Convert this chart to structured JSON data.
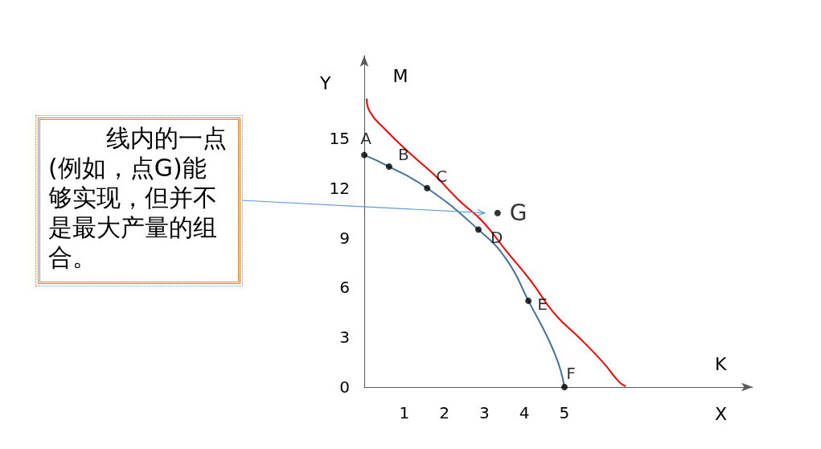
{
  "chart_data": {
    "type": "line",
    "xlabel": "X",
    "ylabel": "Y",
    "xlim": [
      0,
      9.7
    ],
    "ylim": [
      0,
      20
    ],
    "xticks": [
      1,
      2,
      3,
      4,
      5
    ],
    "yticks": [
      0,
      3,
      6,
      9,
      12,
      15
    ],
    "grid": false,
    "series": [
      {
        "color": "#ff0000",
        "marker": "none",
        "x": [
          0.06,
          0.14,
          0.54,
          1.14,
          1.75,
          2.35,
          2.95,
          3.55,
          4.16,
          4.76,
          5.36,
          5.96,
          6.37,
          6.53
        ],
        "values": [
          17.4,
          16.6,
          15.5,
          14.1,
          12.8,
          11.3,
          10.0,
          8.2,
          6.4,
          4.4,
          3.0,
          1.5,
          0.3,
          0.05
        ]
      },
      {
        "color": "#41719c",
        "marker": "none",
        "x": [
          0,
          0.62,
          1.57,
          2.85,
          3.55,
          4.1,
          4.76,
          5
        ],
        "values": [
          14.0,
          13.3,
          12.0,
          9.5,
          7.7,
          5.2,
          2.0,
          0
        ]
      },
      {
        "type": "scatter",
        "color": "#000000",
        "marker": "circle",
        "x": [
          0,
          0.62,
          1.57,
          2.85,
          4.1,
          5,
          3.33
        ],
        "values": [
          14.0,
          13.3,
          12.0,
          9.5,
          5.2,
          0,
          10.5
        ],
        "value_labels": [
          "A",
          "B",
          "C",
          "D",
          "E",
          "F",
          "G"
        ]
      }
    ],
    "annotations": [
      "线内的一点(例如，点G)能够实现，但并不是最大产量的组合。",
      "M",
      "K"
    ]
  }
}
